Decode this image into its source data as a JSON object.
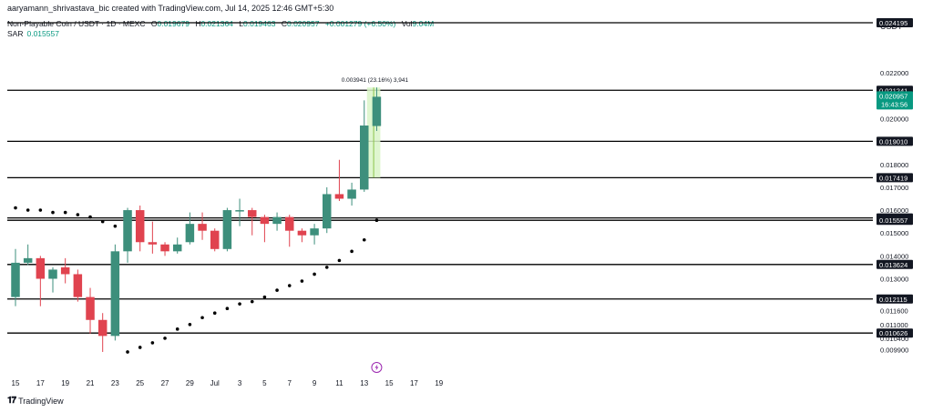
{
  "header": {
    "creator_text": "aaryamann_shrivastava_bic created with TradingView.com, Jul 14, 2025 12:46 GMT+5:30",
    "symbol": "Non-Playable Coin / USDT · 1D · MEXC",
    "ohlc": [
      {
        "label": "O",
        "value": "0.019679"
      },
      {
        "label": "H",
        "value": "0.021364"
      },
      {
        "label": "L",
        "value": "0.019463"
      },
      {
        "label": "C",
        "value": "0.020957"
      }
    ],
    "change": "+0.001279 (+6.50%)",
    "vol_label": "Vol",
    "vol_value": "9.04M",
    "sar_label": "SAR",
    "sar_value": "0.015557",
    "currency": "USDT"
  },
  "footer": {
    "logo_text": "TradingView"
  },
  "colors": {
    "up": "#3d8f7c",
    "down": "#e0434f",
    "sar": "#000000",
    "grid_line": "#000000",
    "price_tag": "#089981",
    "measure_fill": "#d9f5c8"
  },
  "chart_data": {
    "type": "candlestick",
    "ylim": [
      0.0096,
      0.0232
    ],
    "x_labels": [
      "15",
      "17",
      "19",
      "21",
      "23",
      "25",
      "27",
      "29",
      "Jul",
      "3",
      "5",
      "7",
      "9",
      "11",
      "13",
      "15",
      "17",
      "19"
    ],
    "y_ticks": [
      "0.022000",
      "0.020000",
      "0.018000",
      "0.017000",
      "0.016000",
      "0.015000",
      "0.014000",
      "0.013000",
      "0.011600",
      "0.011000",
      "0.010400",
      "0.009900"
    ],
    "y_tick_values": [
      0.022,
      0.02,
      0.018,
      0.017,
      0.016,
      0.015,
      0.014,
      0.013,
      0.0116,
      0.011,
      0.0104,
      0.0099
    ],
    "levels": [
      0.024195,
      0.021241,
      0.01901,
      0.017419,
      0.01566,
      0.015557,
      0.013624,
      0.012115,
      0.010626
    ],
    "level_labels": [
      "0.024195",
      "0.021241",
      "0.019010",
      "0.017419",
      "0.015660",
      "0.015557",
      "0.013624",
      "0.012115",
      "0.010626"
    ],
    "current_price": "0.020957",
    "countdown": "16:43:56",
    "measure_label": "0.003941 (23.16%) 3,941",
    "candles": [
      {
        "date": "Jun 15",
        "o": 0.0122,
        "h": 0.0143,
        "l": 0.0118,
        "c": 0.0137
      },
      {
        "date": "Jun 16",
        "o": 0.0137,
        "h": 0.0145,
        "l": 0.0136,
        "c": 0.0139
      },
      {
        "date": "Jun 17",
        "o": 0.0139,
        "h": 0.014,
        "l": 0.0118,
        "c": 0.013
      },
      {
        "date": "Jun 18",
        "o": 0.013,
        "h": 0.0135,
        "l": 0.0124,
        "c": 0.0134
      },
      {
        "date": "Jun 19",
        "o": 0.0135,
        "h": 0.0139,
        "l": 0.0128,
        "c": 0.0132
      },
      {
        "date": "Jun 20",
        "o": 0.0132,
        "h": 0.0134,
        "l": 0.012,
        "c": 0.0122
      },
      {
        "date": "Jun 21",
        "o": 0.0122,
        "h": 0.0126,
        "l": 0.0106,
        "c": 0.0112
      },
      {
        "date": "Jun 22",
        "o": 0.0112,
        "h": 0.0115,
        "l": 0.0098,
        "c": 0.0105
      },
      {
        "date": "Jun 23",
        "o": 0.0105,
        "h": 0.0145,
        "l": 0.0103,
        "c": 0.0142
      },
      {
        "date": "Jun 24",
        "o": 0.0142,
        "h": 0.0161,
        "l": 0.0137,
        "c": 0.016
      },
      {
        "date": "Jun 25",
        "o": 0.016,
        "h": 0.0162,
        "l": 0.0142,
        "c": 0.0146
      },
      {
        "date": "Jun 26",
        "o": 0.0146,
        "h": 0.0155,
        "l": 0.0141,
        "c": 0.0145
      },
      {
        "date": "Jun 27",
        "o": 0.0145,
        "h": 0.0146,
        "l": 0.014,
        "c": 0.0142
      },
      {
        "date": "Jun 28",
        "o": 0.0142,
        "h": 0.0148,
        "l": 0.0141,
        "c": 0.0145
      },
      {
        "date": "Jun 29",
        "o": 0.0146,
        "h": 0.0159,
        "l": 0.0145,
        "c": 0.0154
      },
      {
        "date": "Jun 30",
        "o": 0.0154,
        "h": 0.0159,
        "l": 0.0147,
        "c": 0.0151
      },
      {
        "date": "Jul 1",
        "o": 0.0151,
        "h": 0.0152,
        "l": 0.0142,
        "c": 0.0143
      },
      {
        "date": "Jul 2",
        "o": 0.0143,
        "h": 0.0161,
        "l": 0.0142,
        "c": 0.016
      },
      {
        "date": "Jul 3",
        "o": 0.016,
        "h": 0.0165,
        "l": 0.0153,
        "c": 0.016
      },
      {
        "date": "Jul 4",
        "o": 0.016,
        "h": 0.0161,
        "l": 0.0149,
        "c": 0.0157
      },
      {
        "date": "Jul 5",
        "o": 0.0157,
        "h": 0.0158,
        "l": 0.0146,
        "c": 0.0154
      },
      {
        "date": "Jul 6",
        "o": 0.0154,
        "h": 0.0159,
        "l": 0.0151,
        "c": 0.0157
      },
      {
        "date": "Jul 7",
        "o": 0.0157,
        "h": 0.0158,
        "l": 0.0144,
        "c": 0.0151
      },
      {
        "date": "Jul 8",
        "o": 0.0151,
        "h": 0.0152,
        "l": 0.0146,
        "c": 0.0149
      },
      {
        "date": "Jul 9",
        "o": 0.0149,
        "h": 0.0154,
        "l": 0.0145,
        "c": 0.0152
      },
      {
        "date": "Jul 10",
        "o": 0.0152,
        "h": 0.017,
        "l": 0.015,
        "c": 0.0167
      },
      {
        "date": "Jul 11",
        "o": 0.0167,
        "h": 0.0182,
        "l": 0.0164,
        "c": 0.0165
      },
      {
        "date": "Jul 12",
        "o": 0.0165,
        "h": 0.0172,
        "l": 0.0162,
        "c": 0.0169
      },
      {
        "date": "Jul 13",
        "o": 0.0169,
        "h": 0.0208,
        "l": 0.0168,
        "c": 0.0197
      },
      {
        "date": "Jul 14",
        "o": 0.019679,
        "h": 0.021364,
        "l": 0.019463,
        "c": 0.020957
      }
    ],
    "sar": [
      {
        "date": "Jun 15",
        "v": 0.0161
      },
      {
        "date": "Jun 16",
        "v": 0.016
      },
      {
        "date": "Jun 17",
        "v": 0.016
      },
      {
        "date": "Jun 18",
        "v": 0.0159
      },
      {
        "date": "Jun 19",
        "v": 0.0159
      },
      {
        "date": "Jun 20",
        "v": 0.0158
      },
      {
        "date": "Jun 21",
        "v": 0.0157
      },
      {
        "date": "Jun 22",
        "v": 0.0155
      },
      {
        "date": "Jun 23",
        "v": 0.0153
      },
      {
        "date": "Jun 24",
        "v": 0.0098
      },
      {
        "date": "Jun 25",
        "v": 0.01
      },
      {
        "date": "Jun 26",
        "v": 0.0102
      },
      {
        "date": "Jun 27",
        "v": 0.0104
      },
      {
        "date": "Jun 28",
        "v": 0.0108
      },
      {
        "date": "Jun 29",
        "v": 0.011
      },
      {
        "date": "Jun 30",
        "v": 0.0113
      },
      {
        "date": "Jul 1",
        "v": 0.0115
      },
      {
        "date": "Jul 2",
        "v": 0.0117
      },
      {
        "date": "Jul 3",
        "v": 0.0119
      },
      {
        "date": "Jul 4",
        "v": 0.012
      },
      {
        "date": "Jul 5",
        "v": 0.0122
      },
      {
        "date": "Jul 6",
        "v": 0.0125
      },
      {
        "date": "Jul 7",
        "v": 0.0127
      },
      {
        "date": "Jul 8",
        "v": 0.0129
      },
      {
        "date": "Jul 9",
        "v": 0.0132
      },
      {
        "date": "Jul 10",
        "v": 0.0135
      },
      {
        "date": "Jul 11",
        "v": 0.0138
      },
      {
        "date": "Jul 12",
        "v": 0.0142
      },
      {
        "date": "Jul 13",
        "v": 0.0147
      },
      {
        "date": "Jul 14",
        "v": 0.015557
      }
    ],
    "grid": false
  }
}
